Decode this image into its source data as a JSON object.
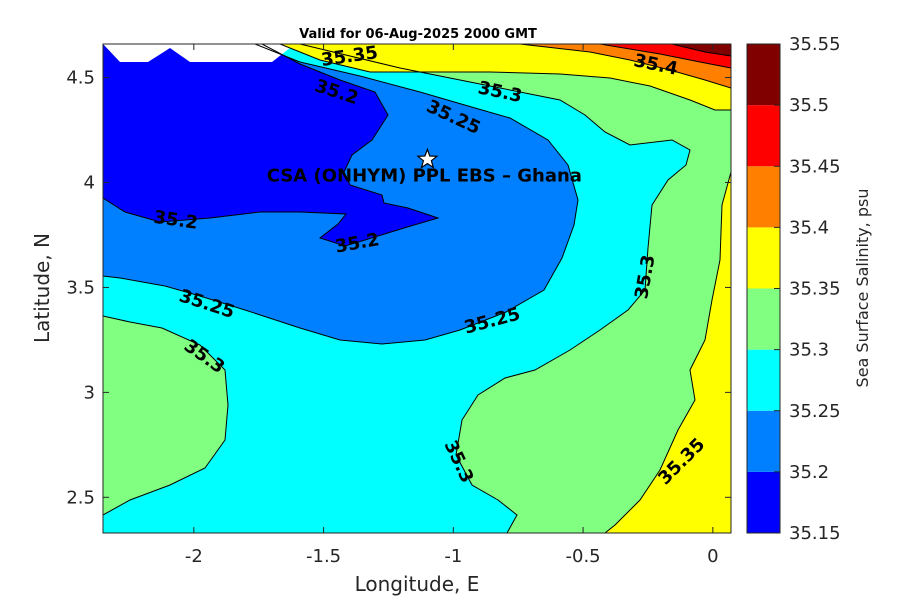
{
  "chart_data": {
    "type": "contour",
    "title": "Valid for 06-Aug-2025 2000 GMT",
    "xlabel": "Longitude, E",
    "ylabel": "Latitude, N",
    "xlim": [
      -2.35,
      0.07
    ],
    "ylim": [
      2.33,
      4.66
    ],
    "xticks": [
      -2,
      -1.5,
      -1,
      -0.5,
      0
    ],
    "xtick_labels": [
      "-2",
      "-1.5",
      "-1",
      "-0.5",
      "0"
    ],
    "yticks": [
      2.5,
      3,
      3.5,
      4,
      4.5
    ],
    "ytick_labels": [
      "2.5",
      "3",
      "3.5",
      "4",
      "4.5"
    ],
    "colorbar": {
      "label": "Sea Surface Salinity, psu",
      "levels": [
        35.15,
        35.2,
        35.25,
        35.3,
        35.35,
        35.4,
        35.45,
        35.5,
        35.55
      ],
      "level_labels": [
        "35.15",
        "35.2",
        "35.25",
        "35.3",
        "35.35",
        "35.4",
        "35.45",
        "35.5",
        "35.55"
      ],
      "colors": [
        "#0000ff",
        "#0080ff",
        "#00ffff",
        "#80ff80",
        "#ffff00",
        "#ff8000",
        "#ff0000",
        "#800000"
      ]
    },
    "contour_labels": [
      {
        "text": "35.35",
        "lon": -1.4,
        "lat": 4.6,
        "angle": -8
      },
      {
        "text": "35.4",
        "lon": -0.22,
        "lat": 4.56,
        "angle": 12
      },
      {
        "text": "35.2",
        "lon": -1.45,
        "lat": 4.43,
        "angle": 18
      },
      {
        "text": "35.3",
        "lon": -0.82,
        "lat": 4.43,
        "angle": 12
      },
      {
        "text": "35.25",
        "lon": -1.0,
        "lat": 4.31,
        "angle": 25
      },
      {
        "text": "35.2",
        "lon": -2.07,
        "lat": 3.82,
        "angle": 8
      },
      {
        "text": "35.2",
        "lon": -1.37,
        "lat": 3.71,
        "angle": -10
      },
      {
        "text": "35.3",
        "lon": -0.26,
        "lat": 3.55,
        "angle": -80
      },
      {
        "text": "35.25",
        "lon": -1.95,
        "lat": 3.42,
        "angle": 18
      },
      {
        "text": "35.25",
        "lon": -0.85,
        "lat": 3.34,
        "angle": -15
      },
      {
        "text": "35.3",
        "lon": -1.96,
        "lat": 3.17,
        "angle": 35
      },
      {
        "text": "35.3",
        "lon": -0.98,
        "lat": 2.67,
        "angle": 65
      },
      {
        "text": "35.35",
        "lon": -0.12,
        "lat": 2.67,
        "angle": -45
      }
    ],
    "site": {
      "label": "CSA (ONHYM) PPL EBS  – Ghana",
      "lon": -1.1,
      "lat": 4.11,
      "marker": "star"
    }
  }
}
